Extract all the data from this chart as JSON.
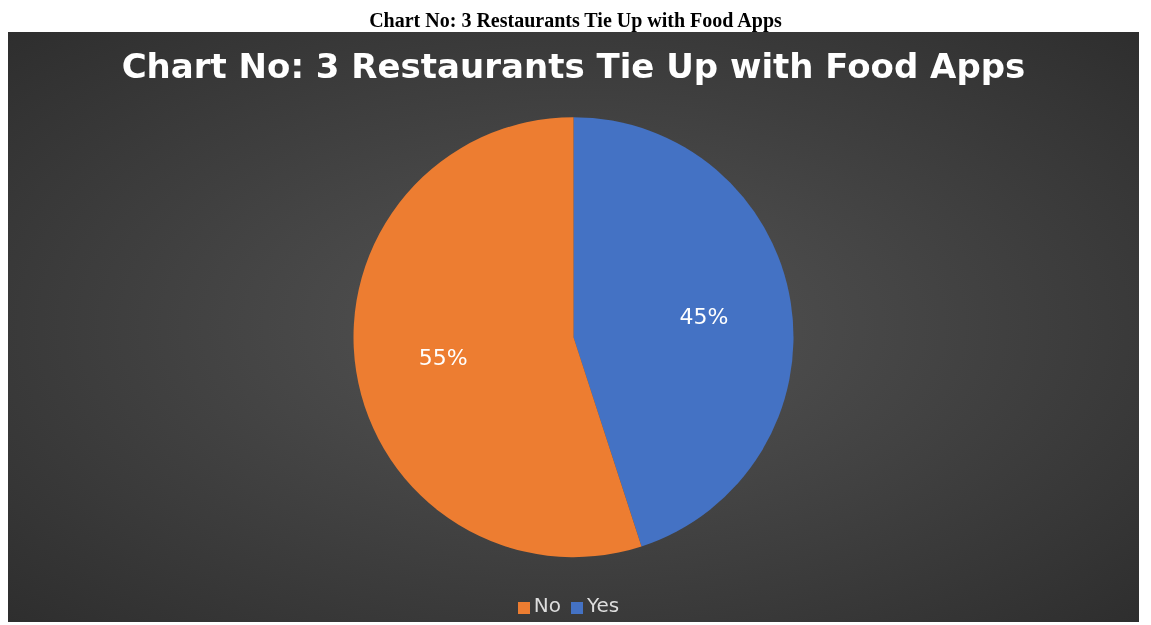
{
  "chart_data": {
    "type": "pie",
    "title": "Chart No: 3 Restaurants Tie Up with  Food Apps",
    "annotations": [
      "Chart No: 3 Restaurants Tie Up with Food Apps"
    ],
    "categories": [
      "Yes",
      "No"
    ],
    "values": [
      45,
      55
    ],
    "colors": [
      "#4472c4",
      "#ed7d31"
    ],
    "value_labels": [
      "45%",
      "55%"
    ],
    "legend": "bottom"
  }
}
